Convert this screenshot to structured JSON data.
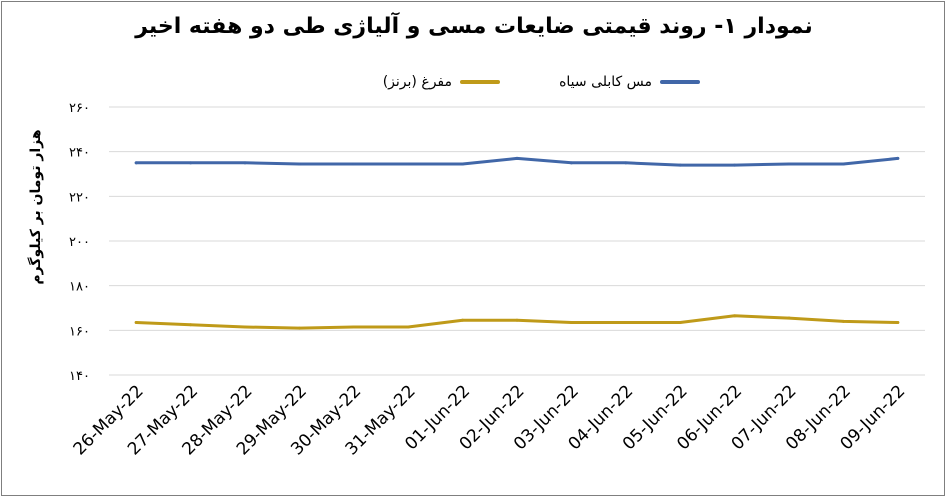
{
  "chart_data": {
    "type": "line",
    "title": "نمودار ۱- روند قیمتی ضایعات مسی و آلیاژی طی دو هفته اخیر",
    "ylabel": "هزار تومان بر کیلوگرم",
    "xlabel": "",
    "ylim": [
      140,
      260
    ],
    "yticks": [
      140,
      160,
      180,
      200,
      220,
      240,
      260
    ],
    "ytick_labels": [
      "۱۴۰",
      "۱۶۰",
      "۱۸۰",
      "۲۰۰",
      "۲۲۰",
      "۲۴۰",
      "۲۶۰"
    ],
    "grid": true,
    "legend_position": "top",
    "categories": [
      "26-May-22",
      "27-May-22",
      "28-May-22",
      "29-May-22",
      "30-May-22",
      "31-May-22",
      "01-Jun-22",
      "02-Jun-22",
      "03-Jun-22",
      "04-Jun-22",
      "05-Jun-22",
      "06-Jun-22",
      "07-Jun-22",
      "08-Jun-22",
      "09-Jun-22"
    ],
    "series": [
      {
        "name": "مس کابلی سیاه",
        "color": "#4167a8",
        "values": [
          235,
          235,
          235,
          234.5,
          234.5,
          234.5,
          234.5,
          237,
          235,
          235,
          234,
          234,
          234.5,
          234.5,
          237
        ]
      },
      {
        "name": "مفرغ (برنز)",
        "color": "#bf9a19",
        "values": [
          163.5,
          162.5,
          161.5,
          161,
          161.5,
          161.5,
          164.5,
          164.5,
          163.5,
          163.5,
          163.5,
          166.5,
          165.5,
          164,
          163.5
        ]
      }
    ]
  }
}
